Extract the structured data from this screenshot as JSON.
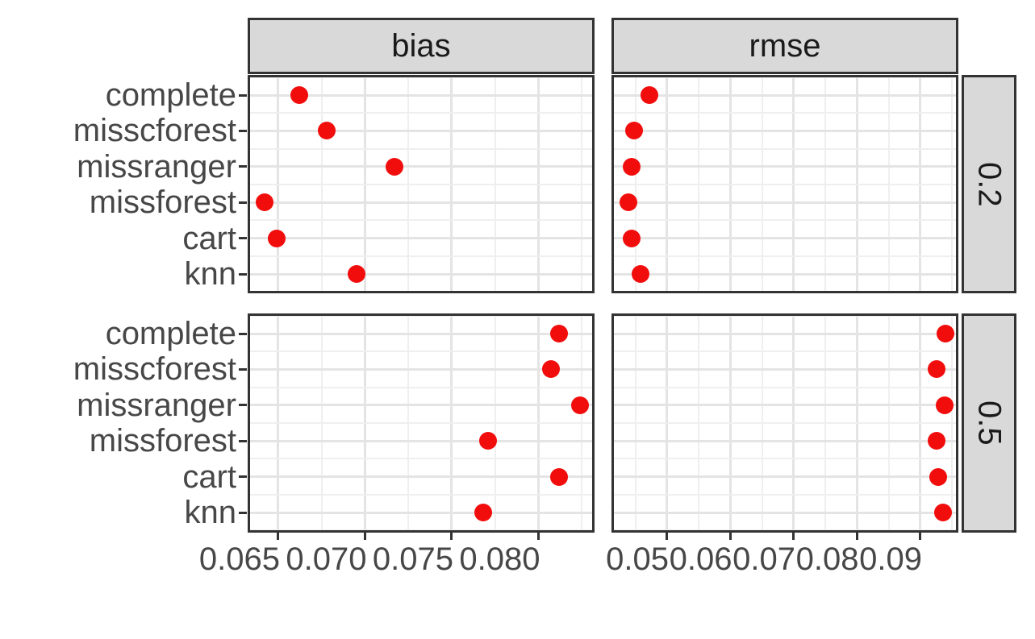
{
  "chart_data": {
    "type": "scatter",
    "facet_cols": [
      "bias",
      "rmse"
    ],
    "facet_rows": [
      "0.2",
      "0.5"
    ],
    "categories": [
      "complete",
      "misscforest",
      "missranger",
      "missforest",
      "cart",
      "knn"
    ],
    "x_axes": {
      "bias": {
        "ticks": [
          0.065,
          0.07,
          0.075,
          0.08
        ],
        "tick_labels": [
          "0.065",
          "0.070",
          "0.075",
          "0.080"
        ],
        "domain": [
          0.063233,
          0.083233
        ]
      },
      "rmse": {
        "ticks": [
          0.05,
          0.06,
          0.07,
          0.08,
          0.09
        ],
        "tick_labels": [
          "0.05",
          "0.06",
          "0.07",
          "0.08",
          "0.09"
        ],
        "domain": [
          0.04121,
          0.09599
        ]
      }
    },
    "panels": [
      {
        "metric": "bias",
        "miss_rate": "0.2",
        "values": {
          "complete": 0.0662,
          "misscforest": 0.0678,
          "missranger": 0.0717,
          "missforest": 0.0642,
          "cart": 0.0649,
          "knn": 0.0695
        }
      },
      {
        "metric": "rmse",
        "miss_rate": "0.2",
        "values": {
          "complete": 0.0472,
          "misscforest": 0.0448,
          "missranger": 0.0444,
          "missforest": 0.0439,
          "cart": 0.0444,
          "knn": 0.0458
        }
      },
      {
        "metric": "bias",
        "miss_rate": "0.5",
        "values": {
          "complete": 0.0812,
          "misscforest": 0.0807,
          "missranger": 0.0824,
          "missforest": 0.0771,
          "cart": 0.0812,
          "knn": 0.0768
        }
      },
      {
        "metric": "rmse",
        "miss_rate": "0.5",
        "values": {
          "complete": 0.094,
          "misscforest": 0.0926,
          "missranger": 0.0938,
          "missforest": 0.0926,
          "cart": 0.0928,
          "knn": 0.0936
        }
      }
    ],
    "grid": true,
    "legend": "none",
    "style": {
      "point_color": "#F20D0D",
      "strip_fill": "#D9D9D9",
      "border_color": "#333333",
      "grid_major_color": "#E4E4E4",
      "grid_minor_color": "#EFEFEF",
      "axis_text_color": "#474747",
      "strip_text_color": "#1A1A1A",
      "background": "#FFFFFF"
    }
  }
}
